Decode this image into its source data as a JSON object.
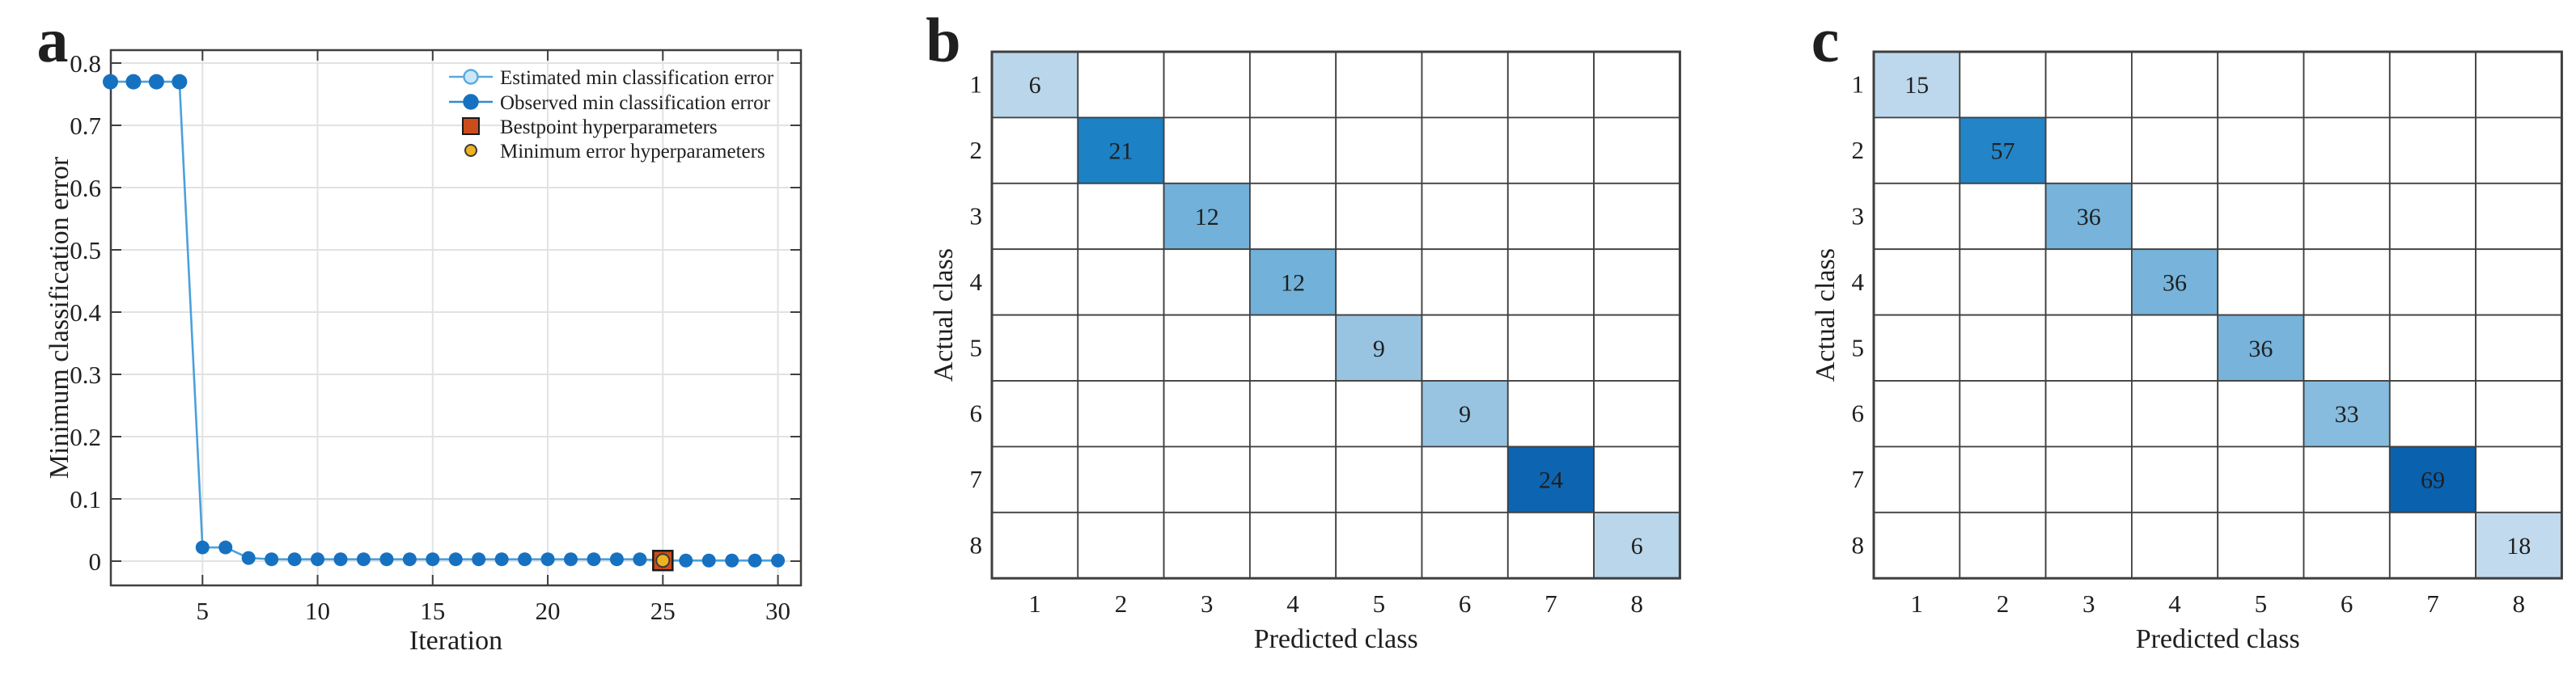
{
  "figure": {
    "background": "#ffffff"
  },
  "panel_a": {
    "panel_label": "a",
    "x_label": "Iteration",
    "y_label": "Minimum classification error",
    "x_ticks": [
      "5",
      "10",
      "15",
      "20",
      "25",
      "30"
    ],
    "y_ticks": [
      "0",
      "0.1",
      "0.2",
      "0.3",
      "0.4",
      "0.5",
      "0.6",
      "0.7",
      "0.8"
    ],
    "legend": [
      {
        "label": "Estimated min classification error",
        "marker": "open-circle",
        "line_color": "#58aadf",
        "fill": "#cde7f8",
        "edge": "#58aadf"
      },
      {
        "label": "Observed min classification error",
        "marker": "filled-circle",
        "line_color": "#2f8ccd",
        "fill": "#1771c1",
        "edge": "#1771c1"
      },
      {
        "label": "Bestpoint hyperparameters",
        "marker": "square",
        "line_color": "#1a1a1a",
        "fill": "#cb4d1c",
        "edge": "#1a1a1a"
      },
      {
        "label": "Minimum error hyperparameters",
        "marker": "circle",
        "line_color": "#3a3a3a",
        "fill": "#eeb21f",
        "edge": "#3a3a3a"
      }
    ],
    "colors": {
      "estimated_line": "#4aa1dc",
      "observed_marker": "#1771c1",
      "grid": "#e2e2e2",
      "axis": "#3f3f3f"
    },
    "best_point_iteration": 25,
    "minimum_error_iteration": 25
  },
  "panel_b": {
    "panel_label": "b",
    "x_label": "Predicted class",
    "y_label": "Actual class",
    "class_labels": [
      "1",
      "2",
      "3",
      "4",
      "5",
      "6",
      "7",
      "8"
    ],
    "diagonal_values": [
      6,
      21,
      12,
      12,
      9,
      9,
      24,
      6
    ],
    "cell_colors": [
      "#b9d6eb",
      "#1c81c5",
      "#72b1d9",
      "#72b1d9",
      "#98c4e2",
      "#98c4e2",
      "#0d65b1",
      "#b9d6eb"
    ],
    "text_colors": [
      "#1a1a1a",
      "#ffffff",
      "#1a1a1a",
      "#1a1a1a",
      "#1a1a1a",
      "#1a1a1a",
      "#ffffff",
      "#1a1a1a"
    ],
    "empty_cell_color": "#ffffff",
    "grid_color": "#3f3f3f"
  },
  "panel_c": {
    "panel_label": "c",
    "x_label": "Predicted class",
    "y_label": "Actual class",
    "class_labels": [
      "1",
      "2",
      "3",
      "4",
      "5",
      "6",
      "7",
      "8"
    ],
    "diagonal_values": [
      15,
      57,
      36,
      36,
      36,
      33,
      69,
      18
    ],
    "cell_colors": [
      "#bdd8ec",
      "#2385c7",
      "#77b3da",
      "#77b3da",
      "#77b3da",
      "#87bcde",
      "#0a61ad",
      "#c1daee"
    ],
    "text_colors": [
      "#1a1a1a",
      "#ffffff",
      "#1a1a1a",
      "#1a1a1a",
      "#1a1a1a",
      "#1a1a1a",
      "#ffffff",
      "#1a1a1a"
    ],
    "empty_cell_color": "#ffffff",
    "grid_color": "#3f3f3f"
  },
  "chart_data": [
    {
      "type": "line",
      "panel": "a",
      "title": "",
      "xlabel": "Iteration",
      "ylabel": "Minimum classification error",
      "x": [
        1,
        2,
        3,
        4,
        5,
        6,
        7,
        8,
        9,
        10,
        11,
        12,
        13,
        14,
        15,
        16,
        17,
        18,
        19,
        20,
        21,
        22,
        23,
        24,
        25,
        26,
        27,
        28,
        29,
        30
      ],
      "series": [
        {
          "name": "Estimated min classification error",
          "values": [
            0.77,
            0.77,
            0.77,
            0.77,
            0.022,
            0.022,
            0.005,
            0.003,
            0.003,
            0.003,
            0.003,
            0.003,
            0.003,
            0.003,
            0.003,
            0.003,
            0.003,
            0.003,
            0.003,
            0.003,
            0.003,
            0.003,
            0.003,
            0.003,
            0.001,
            0.001,
            0.001,
            0.001,
            0.001,
            0.001
          ]
        },
        {
          "name": "Observed min classification error",
          "values": [
            0.77,
            0.77,
            0.77,
            0.77,
            0.022,
            0.022,
            0.005,
            0.003,
            0.003,
            0.003,
            0.003,
            0.003,
            0.003,
            0.003,
            0.003,
            0.003,
            0.003,
            0.003,
            0.003,
            0.003,
            0.003,
            0.003,
            0.003,
            0.003,
            0.001,
            0.001,
            0.001,
            0.001,
            0.001,
            0.001
          ]
        }
      ],
      "point_markers": [
        {
          "name": "Bestpoint hyperparameters",
          "x": 25,
          "y": 0.001
        },
        {
          "name": "Minimum error hyperparameters",
          "x": 25,
          "y": 0.001
        }
      ],
      "xlim": [
        1,
        31
      ],
      "ylim": [
        -0.04,
        0.82
      ],
      "x_ticks": [
        5,
        10,
        15,
        20,
        25,
        30
      ],
      "y_ticks": [
        0,
        0.1,
        0.2,
        0.3,
        0.4,
        0.5,
        0.6,
        0.7,
        0.8
      ],
      "grid": true,
      "legend_position": "top-right"
    },
    {
      "type": "heatmap",
      "panel": "b",
      "xlabel": "Predicted class",
      "ylabel": "Actual class",
      "x_categories": [
        "1",
        "2",
        "3",
        "4",
        "5",
        "6",
        "7",
        "8"
      ],
      "y_categories": [
        "1",
        "2",
        "3",
        "4",
        "5",
        "6",
        "7",
        "8"
      ],
      "diagonal": [
        6,
        21,
        12,
        12,
        9,
        9,
        24,
        6
      ],
      "off_diagonal_cells": "blank"
    },
    {
      "type": "heatmap",
      "panel": "c",
      "xlabel": "Predicted class",
      "ylabel": "Actual class",
      "x_categories": [
        "1",
        "2",
        "3",
        "4",
        "5",
        "6",
        "7",
        "8"
      ],
      "y_categories": [
        "1",
        "2",
        "3",
        "4",
        "5",
        "6",
        "7",
        "8"
      ],
      "diagonal": [
        15,
        57,
        36,
        36,
        36,
        33,
        69,
        18
      ],
      "off_diagonal_cells": "blank"
    }
  ]
}
